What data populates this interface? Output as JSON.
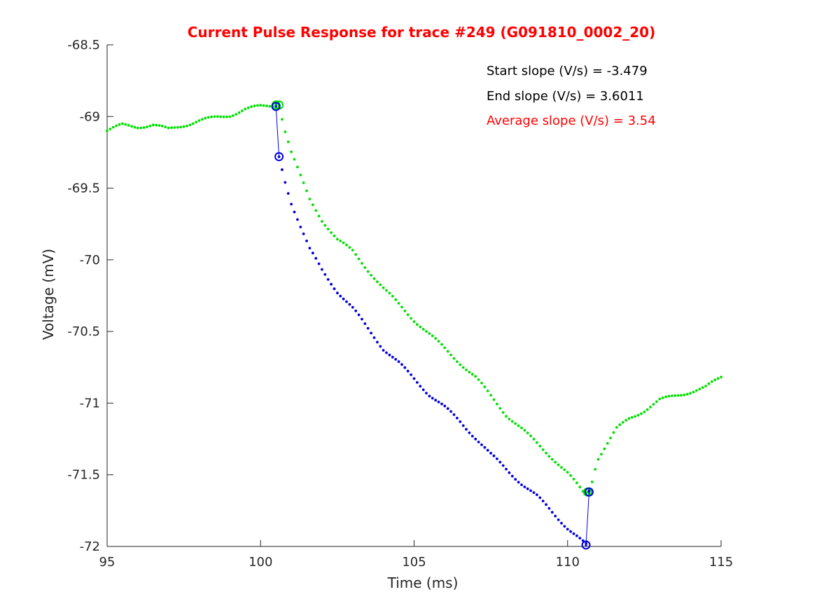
{
  "chart_data": {
    "type": "scatter",
    "title": "Current Pulse Response for trace #249 (G091810_0002_20)",
    "title_color": "#ff0000",
    "xlabel": "Time (ms)",
    "ylabel": "Voltage (mV)",
    "xlim": [
      95,
      115
    ],
    "ylim": [
      -72,
      -68.5
    ],
    "xticks": [
      95,
      100,
      105,
      110,
      115
    ],
    "xtick_labels": [
      "95",
      "100",
      "105",
      "110",
      "115"
    ],
    "yticks": [
      -68.5,
      -69,
      -69.5,
      -70,
      -70.5,
      -71,
      -71.5,
      -72
    ],
    "ytick_labels": [
      "-68.5",
      "-69",
      "-69.5",
      "-70",
      "-70.5",
      "-71",
      "-71.5",
      "-72"
    ],
    "grid": false,
    "annotations": [
      {
        "text": "Start slope (V/s) = -3.479",
        "color": "#000000"
      },
      {
        "text": "End slope (V/s) = 3.6011",
        "color": "#000000"
      },
      {
        "text": "Average slope (V/s) = 3.54",
        "color": "#ff0000"
      }
    ],
    "series": [
      {
        "color": "#00e000",
        "marker": "dot",
        "x": [
          95.0,
          95.5,
          96.0,
          96.5,
          97.0,
          97.5,
          98.0,
          98.5,
          99.0,
          99.5,
          100.0,
          100.5,
          100.6,
          100.8,
          101.0,
          101.3,
          101.6,
          102.0,
          102.5,
          103.0,
          103.5,
          104.0,
          104.5,
          105.0,
          105.5,
          106.0,
          106.5,
          107.0,
          107.5,
          108.0,
          108.5,
          109.0,
          109.5,
          110.0,
          110.5,
          110.7,
          110.9,
          111.0,
          111.3,
          111.6,
          112.0,
          112.5,
          113.0,
          113.5,
          114.0,
          114.5,
          115.0
        ],
        "y": [
          -69.1,
          -69.06,
          -69.07,
          -69.06,
          -69.09,
          -69.06,
          -69.03,
          -69.01,
          -68.99,
          -68.95,
          -68.93,
          -68.92,
          -68.92,
          -69.1,
          -69.25,
          -69.42,
          -69.58,
          -69.72,
          -69.86,
          -69.94,
          -70.07,
          -70.2,
          -70.31,
          -70.42,
          -70.52,
          -70.62,
          -70.72,
          -70.82,
          -70.95,
          -71.08,
          -71.18,
          -71.28,
          -71.38,
          -71.49,
          -71.62,
          -71.63,
          -71.45,
          -71.38,
          -71.28,
          -71.18,
          -71.11,
          -71.05,
          -70.98,
          -70.95,
          -70.92,
          -70.89,
          -70.82
        ]
      },
      {
        "color": "#0000e0",
        "marker": "dot",
        "x": [
          100.5,
          100.6,
          100.8,
          101.0,
          101.3,
          101.6,
          102.0,
          102.5,
          103.0,
          103.5,
          104.0,
          104.5,
          105.0,
          105.5,
          106.0,
          106.5,
          107.0,
          107.5,
          108.0,
          108.5,
          109.0,
          109.5,
          110.0,
          110.5,
          110.6,
          110.7
        ],
        "y": [
          -68.92,
          -69.28,
          -69.45,
          -69.6,
          -69.77,
          -69.93,
          -70.07,
          -70.22,
          -70.34,
          -70.48,
          -70.62,
          -70.72,
          -70.83,
          -70.94,
          -71.03,
          -71.13,
          -71.24,
          -71.36,
          -71.46,
          -71.56,
          -71.65,
          -71.76,
          -71.87,
          -71.97,
          -71.99,
          -71.62
        ]
      }
    ],
    "markers": [
      {
        "x": 100.5,
        "y": -68.92,
        "color": "#00e000"
      },
      {
        "x": 100.6,
        "y": -68.92,
        "color": "#00e000"
      },
      {
        "x": 100.5,
        "y": -68.93,
        "color": "#0000e0"
      },
      {
        "x": 100.6,
        "y": -69.28,
        "color": "#0000e0"
      },
      {
        "x": 110.65,
        "y": -71.62,
        "color": "#00e000"
      },
      {
        "x": 110.7,
        "y": -71.62,
        "color": "#0000e0"
      },
      {
        "x": 110.6,
        "y": -71.99,
        "color": "#0000e0"
      }
    ],
    "connectors": [
      {
        "x": [
          100.5,
          100.6
        ],
        "y": [
          -68.93,
          -69.28
        ],
        "color": "#0000e0"
      },
      {
        "x": [
          110.6,
          110.7
        ],
        "y": [
          -71.99,
          -71.62
        ],
        "color": "#0000e0"
      }
    ]
  }
}
